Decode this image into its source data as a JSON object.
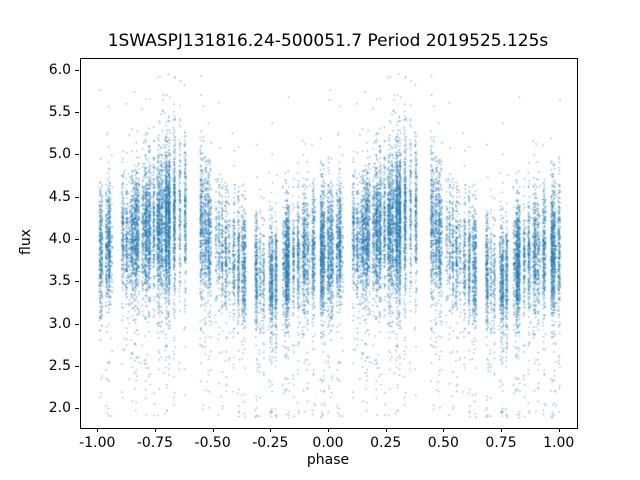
{
  "chart_data": {
    "type": "scatter",
    "title": "1SWASPJ131816.24-500051.7 Period 2019525.125s",
    "xlabel": "phase",
    "ylabel": "flux",
    "xlim": [
      -1.075,
      1.075
    ],
    "ylim": [
      1.78,
      6.14
    ],
    "x_ticks": [
      -1.0,
      -0.75,
      -0.5,
      -0.25,
      0.0,
      0.25,
      0.5,
      0.75,
      1.0
    ],
    "x_tick_labels": [
      "-1.00",
      "-0.75",
      "-0.50",
      "-0.25",
      "0.00",
      "0.25",
      "0.50",
      "0.75",
      "1.00"
    ],
    "y_ticks": [
      2.0,
      2.5,
      3.0,
      3.5,
      4.0,
      4.5,
      5.0,
      5.5,
      6.0
    ],
    "y_tick_labels": [
      "2.0",
      "2.5",
      "3.0",
      "3.5",
      "4.0",
      "4.5",
      "5.0",
      "5.5",
      "6.0"
    ],
    "grid": false,
    "legend": null,
    "marker_color": "#1f77b4",
    "marker_alpha": 0.5,
    "marker_size_px": 1.4,
    "n_points": 12000,
    "n_columns": 120,
    "column_jitter": 0.007,
    "duplicate_fold": true,
    "seed": 1318162,
    "outlier_fraction_low": 0.05,
    "outlier_fraction_high": 0.012,
    "flux_range": [
      1.9,
      5.97
    ],
    "phase_profile_columns": [
      "phase",
      "mean_flux",
      "flux_sd",
      "relative_density"
    ],
    "phase_profile": [
      [
        0.0,
        3.88,
        0.38,
        1.0
      ],
      [
        0.05,
        3.95,
        0.35,
        0.55
      ],
      [
        0.1,
        4.0,
        0.36,
        0.7
      ],
      [
        0.15,
        4.05,
        0.36,
        0.6
      ],
      [
        0.2,
        4.1,
        0.4,
        0.85
      ],
      [
        0.25,
        4.18,
        0.42,
        1.1
      ],
      [
        0.3,
        4.22,
        0.45,
        1.25
      ],
      [
        0.35,
        4.28,
        0.46,
        1.4
      ],
      [
        0.4,
        4.28,
        0.45,
        1.35
      ],
      [
        0.45,
        4.15,
        0.42,
        1.0
      ],
      [
        0.5,
        4.0,
        0.38,
        0.85
      ],
      [
        0.55,
        3.85,
        0.36,
        0.55
      ],
      [
        0.6,
        3.75,
        0.34,
        0.5
      ],
      [
        0.65,
        3.65,
        0.33,
        0.6
      ],
      [
        0.7,
        3.58,
        0.33,
        0.8
      ],
      [
        0.75,
        3.55,
        0.33,
        0.9
      ],
      [
        0.8,
        3.68,
        0.34,
        0.75
      ],
      [
        0.85,
        3.78,
        0.35,
        0.8
      ],
      [
        0.9,
        3.85,
        0.36,
        0.8
      ],
      [
        0.95,
        3.88,
        0.37,
        0.8
      ],
      [
        1.0,
        3.88,
        0.38,
        1.0
      ]
    ]
  }
}
